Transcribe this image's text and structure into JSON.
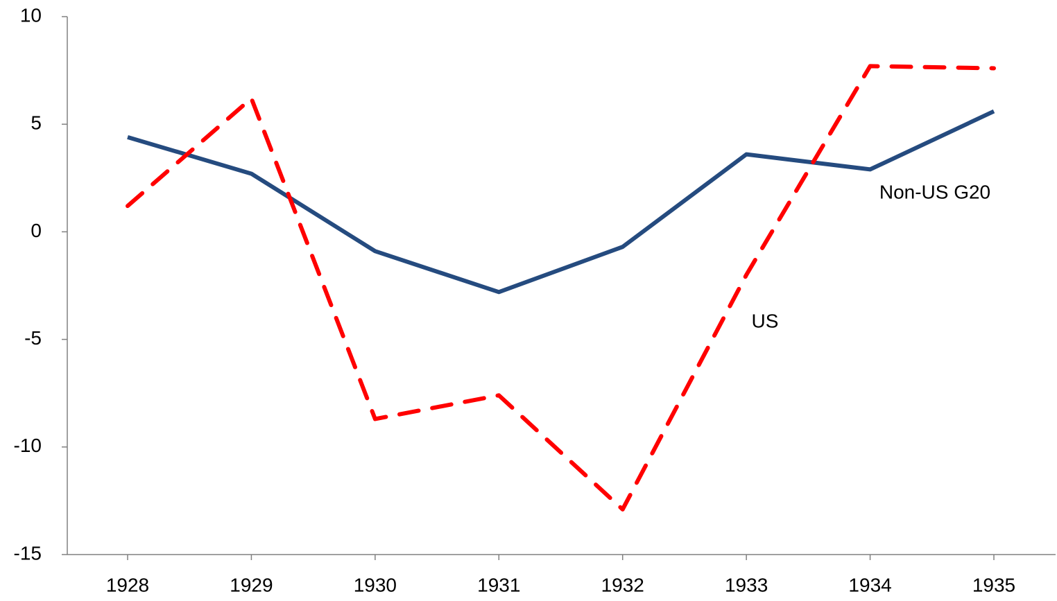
{
  "chart_data": {
    "type": "line",
    "categories": [
      "1928",
      "1929",
      "1930",
      "1931",
      "1932",
      "1933",
      "1934",
      "1935"
    ],
    "series": [
      {
        "name": "Non-US G20",
        "color": "#254b7f",
        "dash": "solid",
        "values": [
          4.4,
          2.7,
          -0.9,
          -2.8,
          -0.7,
          3.6,
          2.9,
          5.6
        ]
      },
      {
        "name": "US",
        "color": "#ff0000",
        "dash": "dashed",
        "values": [
          1.2,
          6.2,
          -8.7,
          -7.6,
          -12.9,
          -2.0,
          7.7,
          7.6
        ]
      }
    ],
    "ylim": [
      -15,
      10
    ],
    "yticks": [
      -15,
      -10,
      -5,
      0,
      5,
      10
    ],
    "grid": false
  }
}
